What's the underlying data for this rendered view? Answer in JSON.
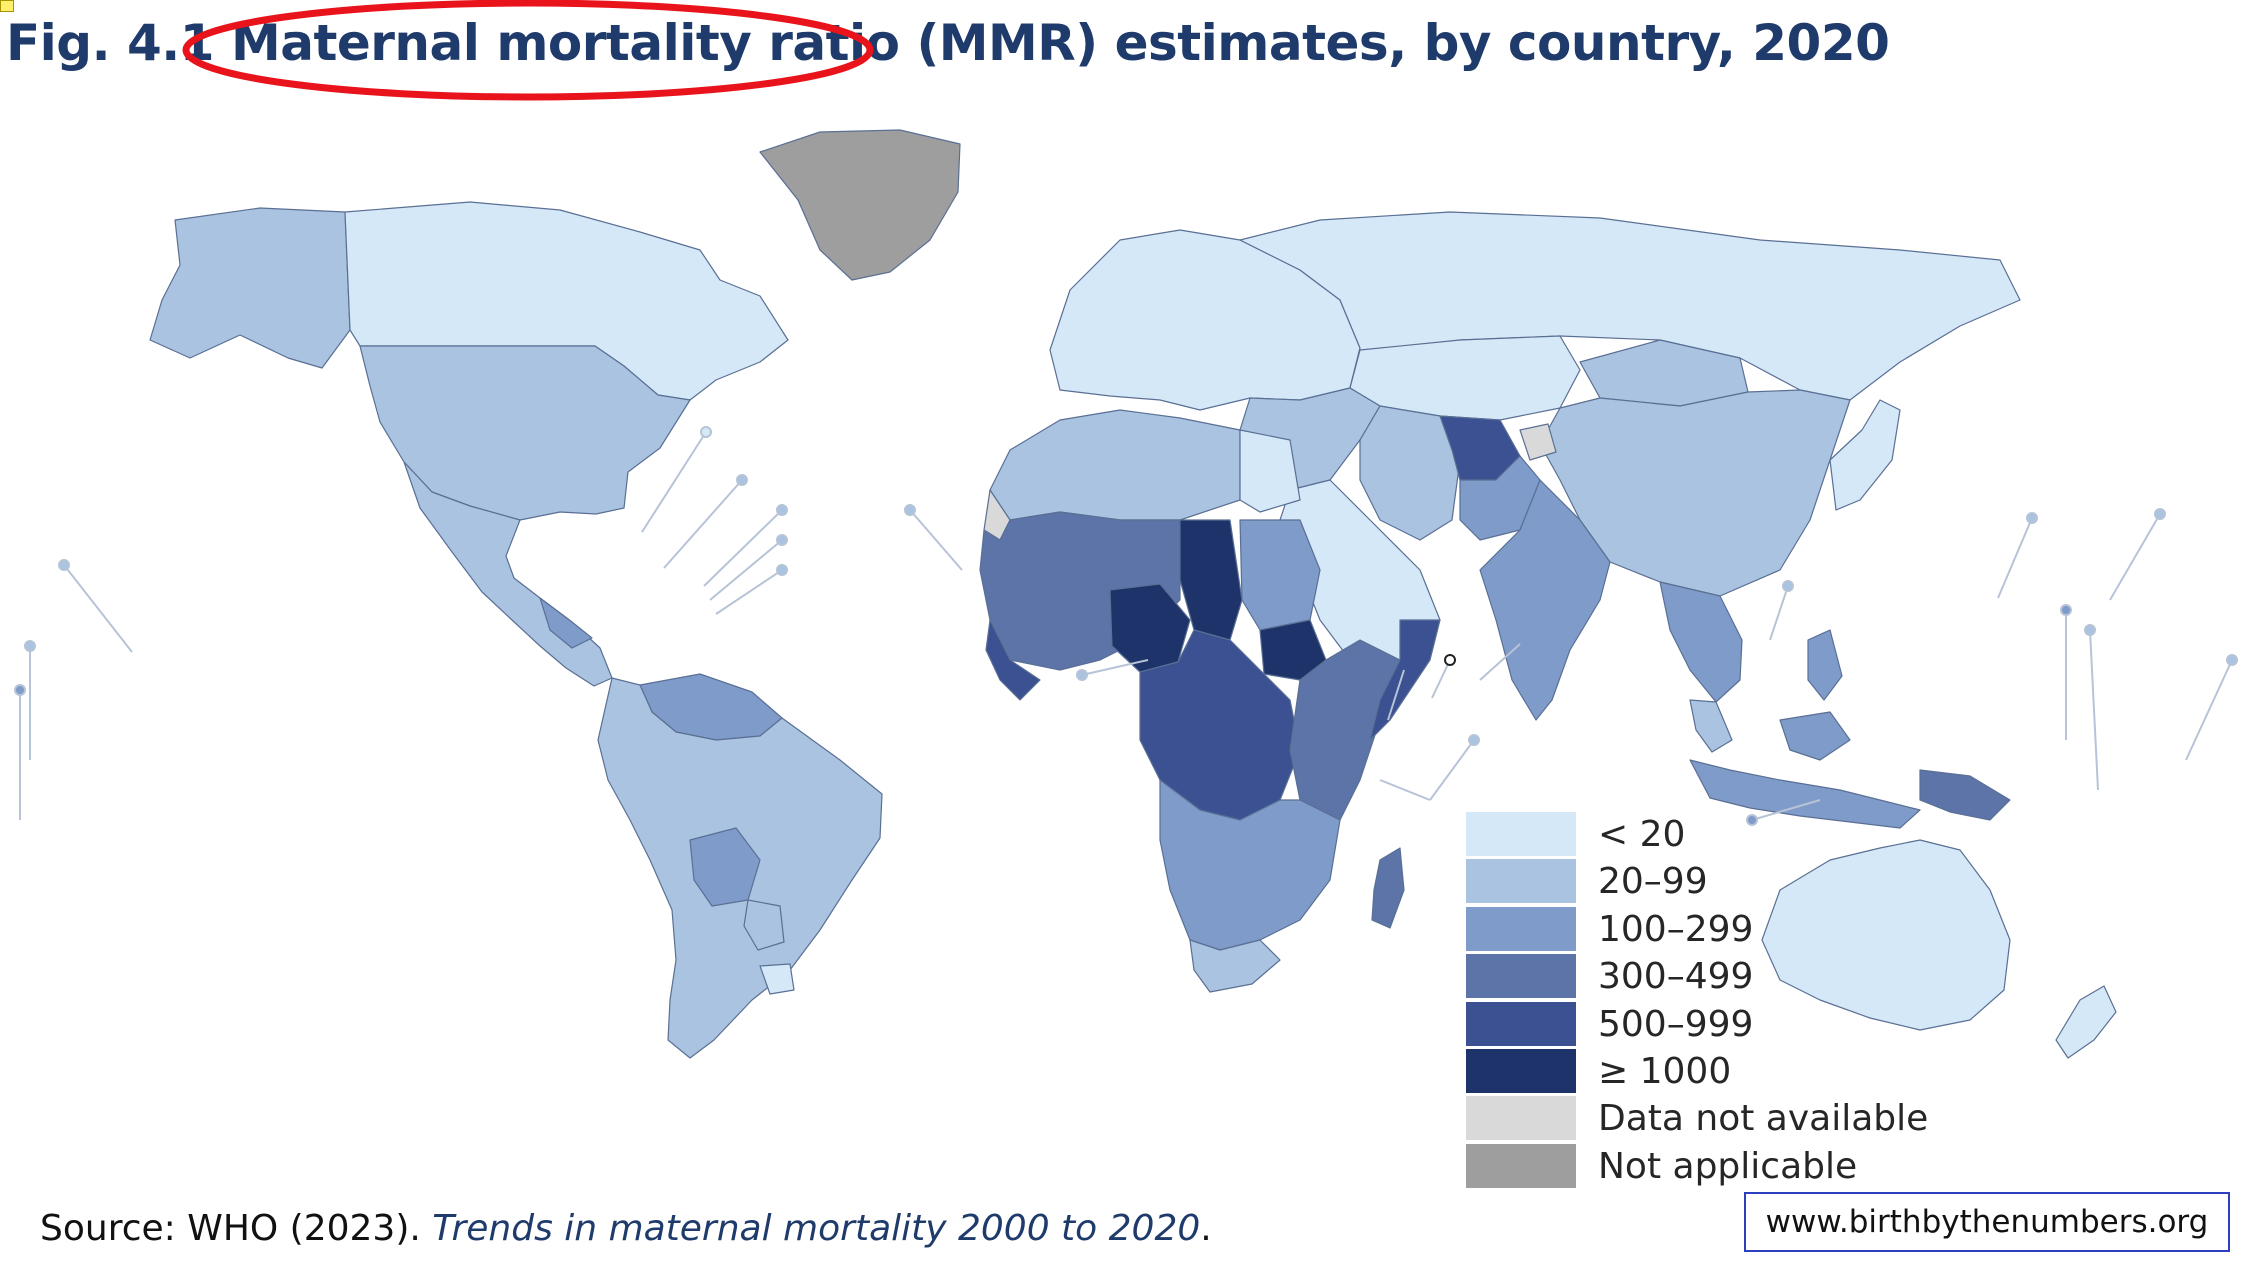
{
  "title": "Fig. 4.1  Maternal mortality ratio (MMR) estimates, by country, 2020",
  "annotation": {
    "shape": "ellipse",
    "color": "#e8131b"
  },
  "legend": {
    "items": [
      {
        "label": "< 20",
        "color": "#d4e8f7"
      },
      {
        "label": "20–99",
        "color": "#a9c3e0"
      },
      {
        "label": "100–299",
        "color": "#7f9bc9"
      },
      {
        "label": "300–499",
        "color": "#5c74a8"
      },
      {
        "label": "500–999",
        "color": "#3b5191"
      },
      {
        "label": "≥ 1000",
        "color": "#1e3369"
      },
      {
        "label": "Data not available",
        "color": "#d9d9d9"
      },
      {
        "label": "Not applicable",
        "color": "#9e9e9e"
      }
    ]
  },
  "regions": [
    {
      "name": "alaska",
      "cat": 1
    },
    {
      "name": "canada",
      "cat": 0
    },
    {
      "name": "usa",
      "cat": 1
    },
    {
      "name": "mexico-central-america",
      "cat": 1
    },
    {
      "name": "guatemala-honduras",
      "cat": 2
    },
    {
      "name": "venezuela-guyana",
      "cat": 2
    },
    {
      "name": "south-america",
      "cat": 1
    },
    {
      "name": "bolivia",
      "cat": 2
    },
    {
      "name": "paraguay",
      "cat": 1
    },
    {
      "name": "uruguay",
      "cat": 0
    },
    {
      "name": "greenland",
      "cat": 7
    },
    {
      "name": "europe",
      "cat": 0
    },
    {
      "name": "russia",
      "cat": 0
    },
    {
      "name": "kazakhstan",
      "cat": 0
    },
    {
      "name": "mongolia",
      "cat": 1
    },
    {
      "name": "china",
      "cat": 1
    },
    {
      "name": "turkey-middle-east",
      "cat": 1
    },
    {
      "name": "arabia",
      "cat": 0
    },
    {
      "name": "iran",
      "cat": 1
    },
    {
      "name": "afghanistan",
      "cat": 4
    },
    {
      "name": "kashmir",
      "cat": 6
    },
    {
      "name": "pakistan",
      "cat": 2
    },
    {
      "name": "india",
      "cat": 2
    },
    {
      "name": "southeast-asia",
      "cat": 2
    },
    {
      "name": "malaysia",
      "cat": 1
    },
    {
      "name": "indonesia",
      "cat": 2
    },
    {
      "name": "philippines",
      "cat": 2
    },
    {
      "name": "papua-new-guinea",
      "cat": 3
    },
    {
      "name": "japan-korea",
      "cat": 0
    },
    {
      "name": "australia",
      "cat": 0
    },
    {
      "name": "new-zealand",
      "cat": 0
    },
    {
      "name": "north-africa",
      "cat": 1
    },
    {
      "name": "egypt",
      "cat": 0
    },
    {
      "name": "western-sahara",
      "cat": 6
    },
    {
      "name": "west-africa",
      "cat": 3
    },
    {
      "name": "guinea-sierra-leone",
      "cat": 4
    },
    {
      "name": "nigeria",
      "cat": 5
    },
    {
      "name": "chad",
      "cat": 5
    },
    {
      "name": "sudan",
      "cat": 2
    },
    {
      "name": "south-sudan",
      "cat": 5
    },
    {
      "name": "central-africa",
      "cat": 4
    },
    {
      "name": "east-africa",
      "cat": 3
    },
    {
      "name": "somalia",
      "cat": 4
    },
    {
      "name": "southern-africa",
      "cat": 2
    },
    {
      "name": "south-africa",
      "cat": 1
    },
    {
      "name": "madagascar",
      "cat": 3
    }
  ],
  "source": {
    "prefix": "Source: WHO (2023). ",
    "title": "Trends in maternal mortality 2000 to 2020",
    "suffix": "."
  },
  "website": "www.birthbythenumbers.org"
}
